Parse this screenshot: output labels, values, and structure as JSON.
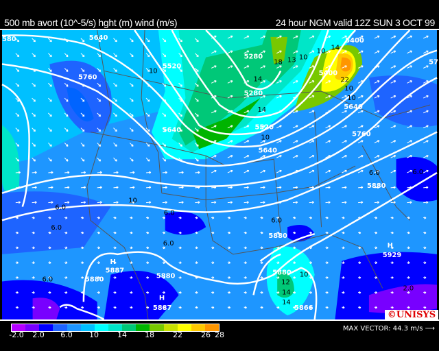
{
  "header": {
    "title_left": "500 mb avort (10^-5/s) hght (m) wind (m/s)",
    "title_right": "24 hour NGM valid 12Z SUN  3 OCT 99"
  },
  "legend": {
    "colors": [
      "#b400ff",
      "#7800ff",
      "#0000ff",
      "#1e64ff",
      "#1e96ff",
      "#00c0ff",
      "#00ffff",
      "#00e6c8",
      "#00c878",
      "#00b400",
      "#78c800",
      "#c8e100",
      "#ffff00",
      "#ffc800",
      "#ff9600"
    ],
    "ticks": [
      "-2.0",
      "2.0",
      "6.0",
      "10",
      "14",
      "18",
      "22",
      "26",
      "28"
    ]
  },
  "max_vector": {
    "label": "MAX VECTOR:",
    "value": "44.3 m/s",
    "icon": "arrow-right-icon"
  },
  "logo": "©UNISYS",
  "map": {
    "height_labels": [
      "580",
      "5640",
      "5760",
      "5520",
      "5640",
      "5280",
      "5400",
      "5400",
      "5280",
      "5520",
      "5640",
      "5640",
      "5760",
      "5880",
      "5880",
      "5880",
      "5880",
      "5880",
      "5929",
      "5866",
      "5887",
      "5887",
      "57"
    ],
    "high_labels": [
      "H",
      "H",
      "H"
    ],
    "vort_labels": [
      "10",
      "10",
      "6.0",
      "6.0",
      "6.0",
      "6.0",
      "6.0",
      "6.0",
      "18",
      "13",
      "10",
      "10",
      "14",
      "14",
      "14",
      "10",
      "22",
      "10",
      "10",
      "6.0",
      "10",
      "12",
      "14",
      "14",
      "2.0",
      "6.0"
    ]
  }
}
